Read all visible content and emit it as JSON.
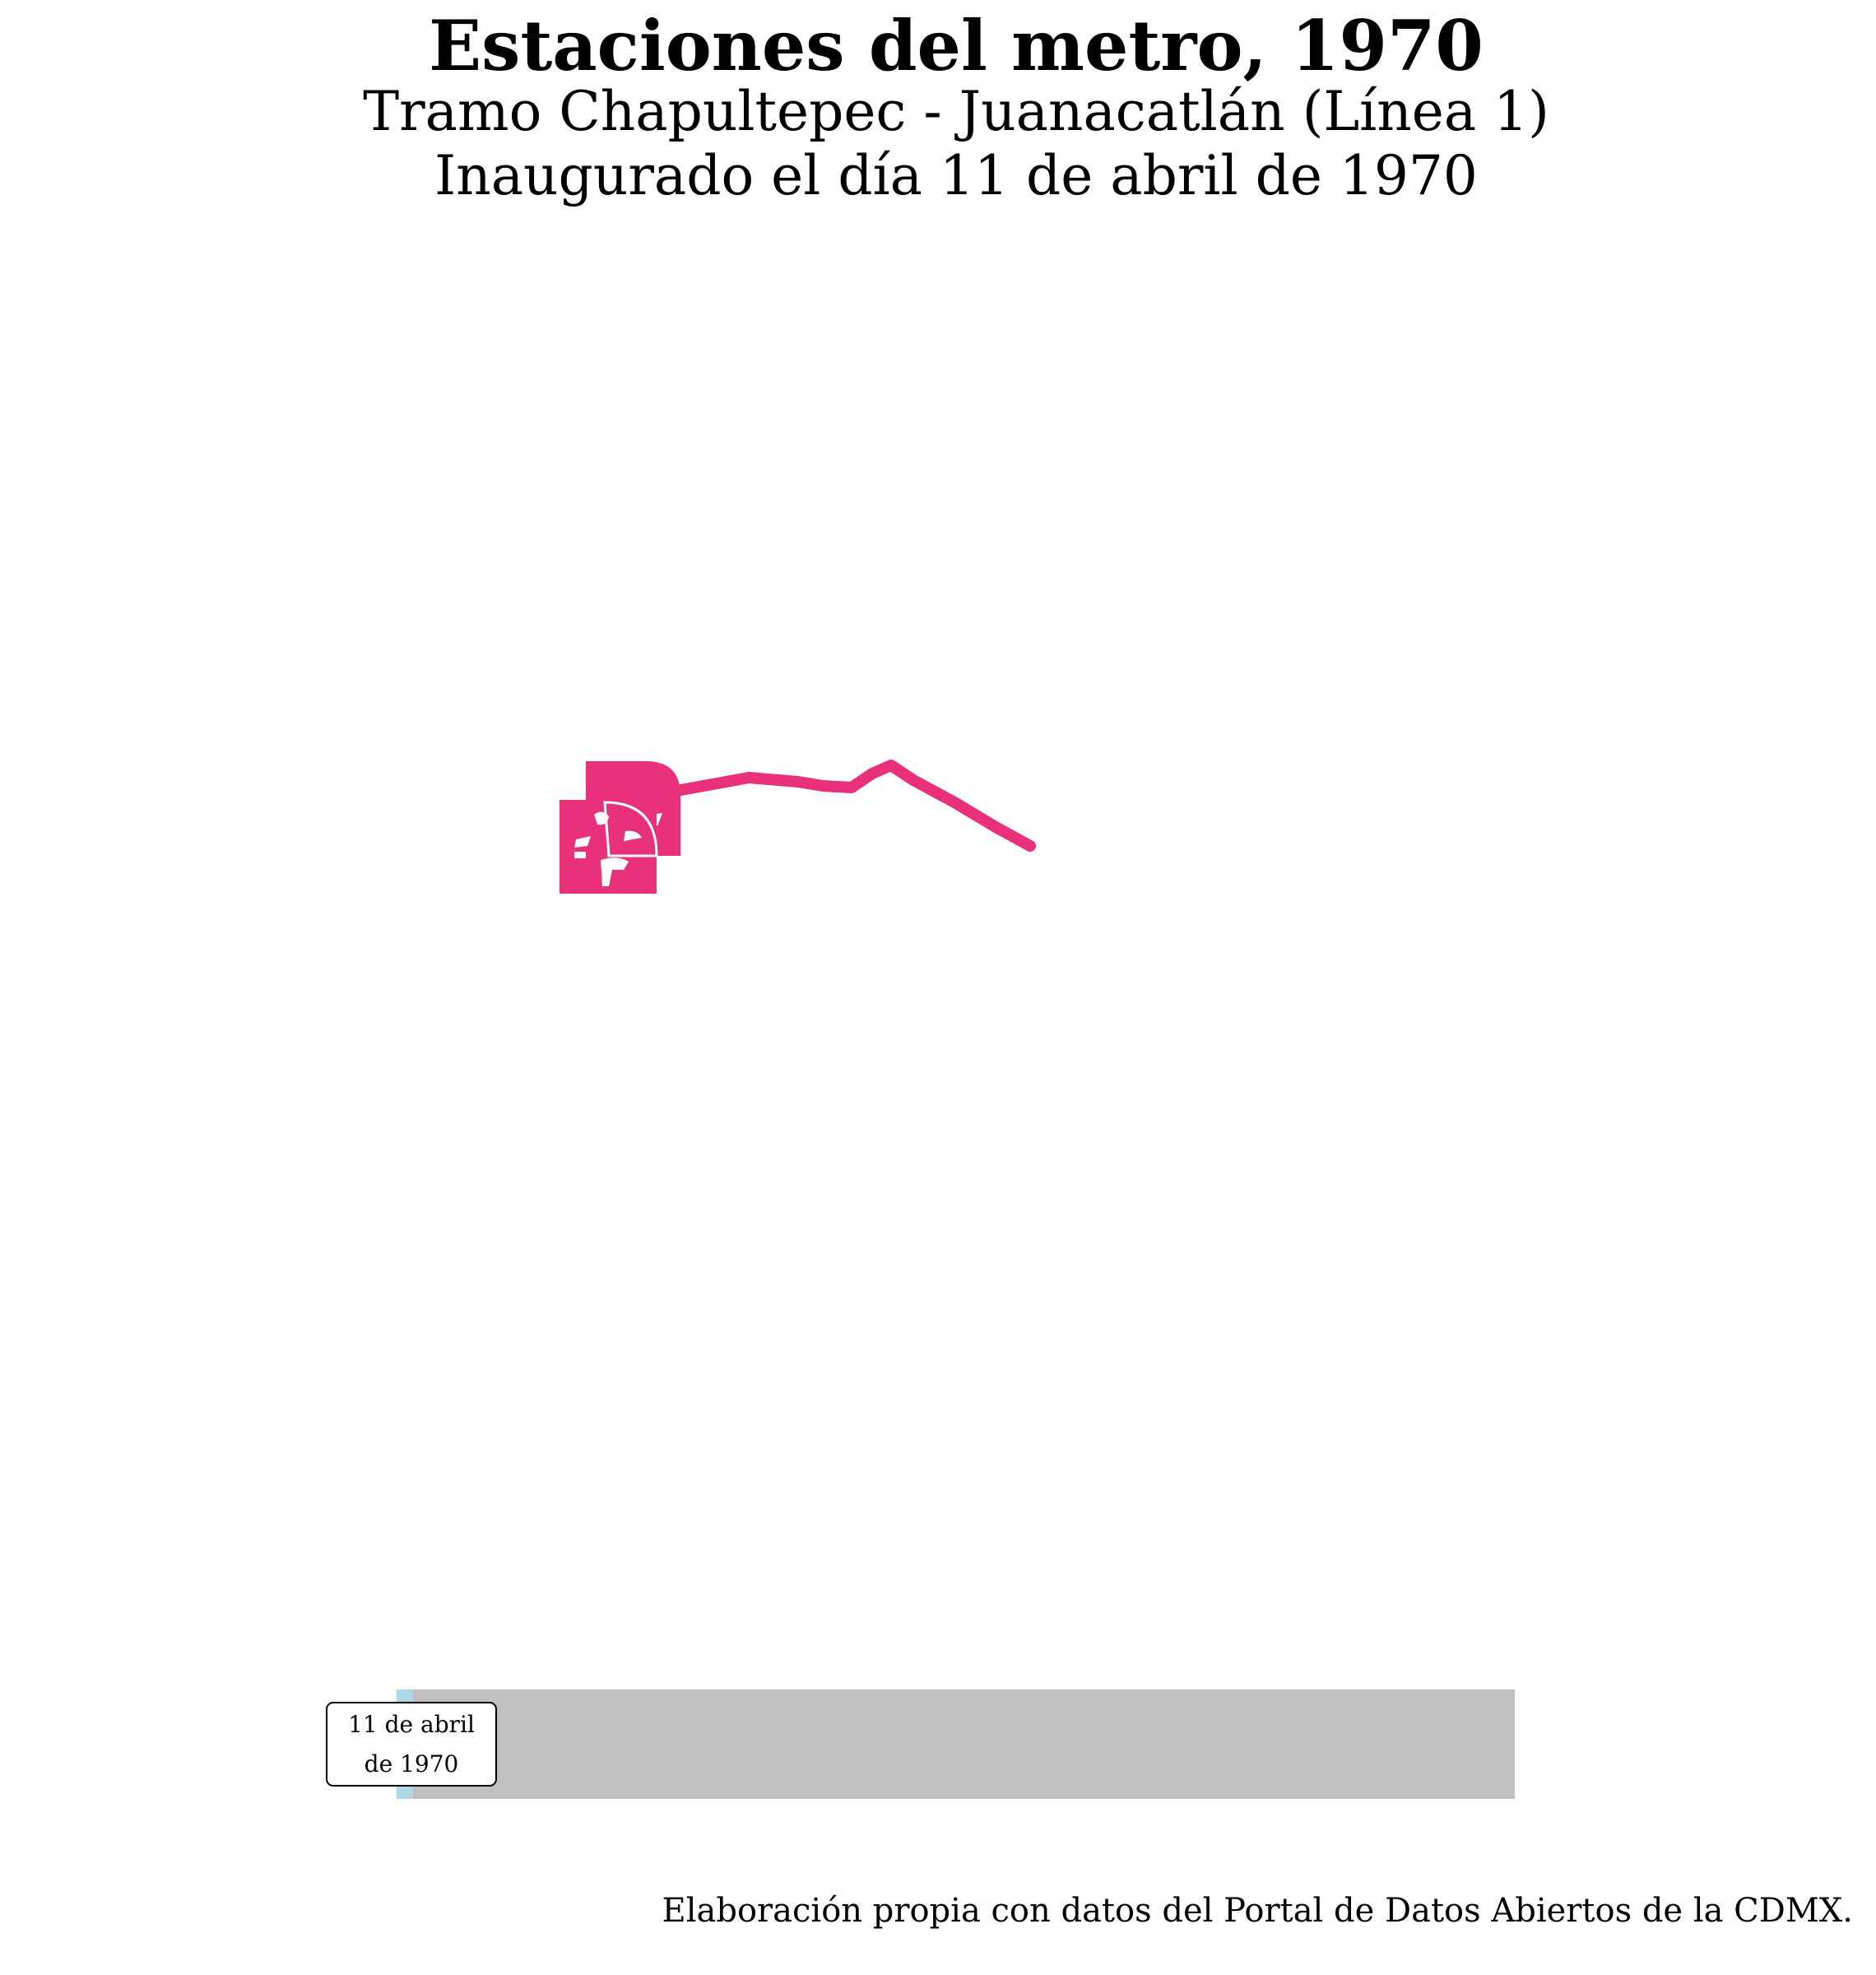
{
  "title": "Estaciones del metro, 1970",
  "subtitle_line1": "Tramo Chapultepec - Juanacatlán (Línea 1)",
  "subtitle_line2": "Inaugurado el día 11 de abril de 1970",
  "map": {
    "line_name": "Línea 1",
    "line_color": "#e9307a",
    "stations": [
      "Chapultepec",
      "Juanacatlán"
    ],
    "station_icons": [
      "juanacatlan-station-icon",
      "chapultepec-station-icon"
    ]
  },
  "timeline": {
    "date_label": "11 de abril de 1970",
    "progress_fraction": 0.015,
    "track_color": "#c0c0c0",
    "progress_color": "#add8e6"
  },
  "caption": "Elaboración propia con datos del Portal de Datos Abiertos de la CDMX."
}
